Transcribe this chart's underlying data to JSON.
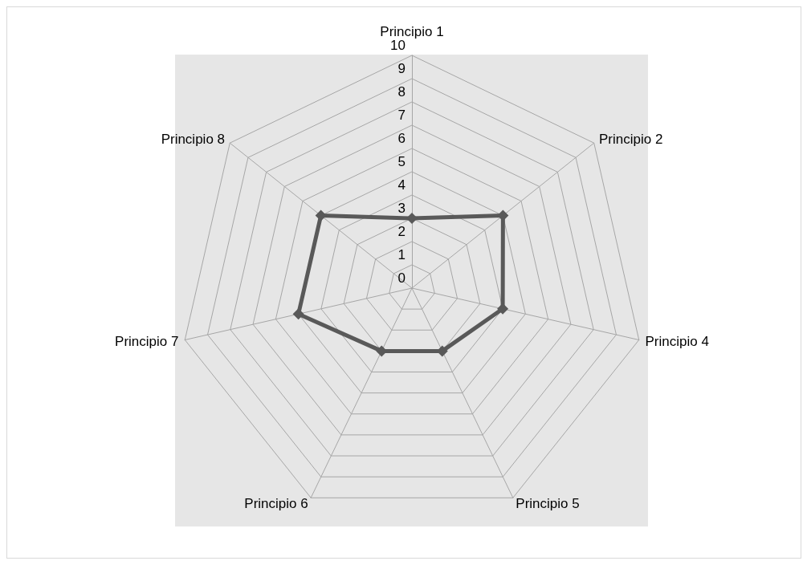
{
  "chart_data": {
    "type": "radar",
    "categories": [
      "Principio 1",
      "Principio 2",
      "Principio 4",
      "Principio 5",
      "Principio 6",
      "Principio 7",
      "Principio 8"
    ],
    "series": [
      {
        "color": "#595959",
        "values": [
          3,
          5,
          4,
          3,
          3,
          5,
          5
        ]
      }
    ],
    "ylim": [
      0,
      10
    ],
    "yticks": [
      0,
      1,
      2,
      3,
      4,
      5,
      6,
      7,
      8,
      9,
      10
    ],
    "marker": "diamond",
    "line_style": "solid",
    "grid": true
  }
}
